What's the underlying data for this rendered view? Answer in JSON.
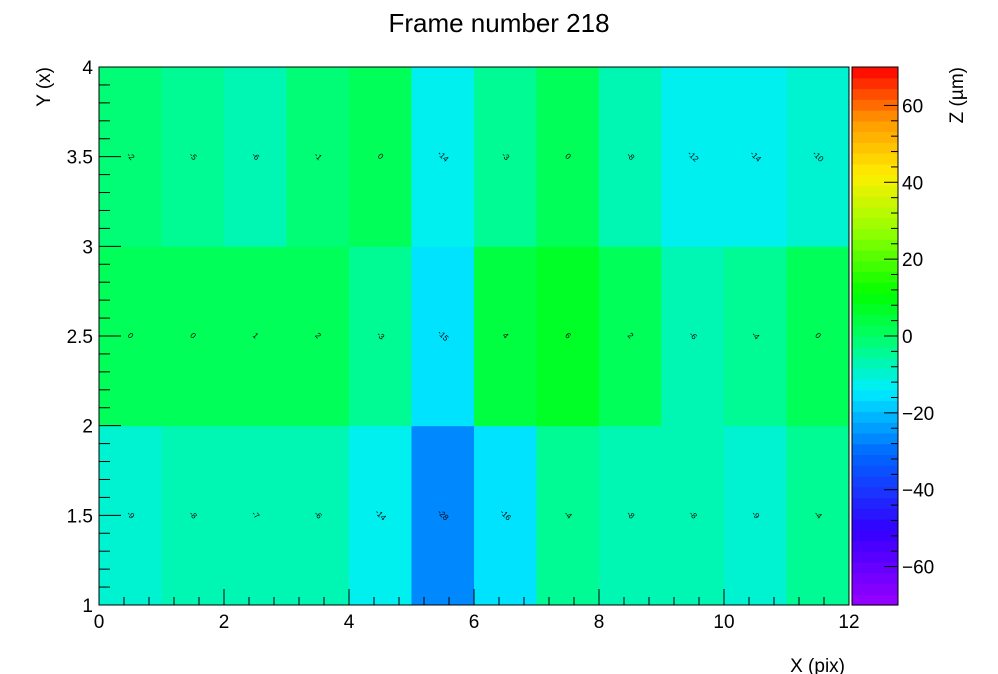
{
  "chart_data": {
    "type": "heatmap",
    "title": "Frame number 218",
    "xlabel": "X (pix)",
    "ylabel": "Y (x)",
    "zlabel": "Z (µm)",
    "xlim": [
      0,
      12
    ],
    "ylim": [
      1,
      4
    ],
    "zlim": [
      -70,
      70
    ],
    "x_ticks": [
      "0",
      "2",
      "4",
      "6",
      "8",
      "10",
      "12"
    ],
    "y_ticks": [
      "1",
      "1.5",
      "2",
      "2.5",
      "3",
      "3.5",
      "4"
    ],
    "z_ticks": [
      "−60",
      "−40",
      "−20",
      "0",
      "20",
      "40",
      "60"
    ],
    "x_bins": 12,
    "y_bins": 3,
    "rows": [
      {
        "y_center": 1.5,
        "values": [
          -9,
          -8,
          -7,
          -6,
          -14,
          -28,
          -16,
          -4,
          -8,
          -8,
          -9,
          -4
        ]
      },
      {
        "y_center": 2.5,
        "values": [
          0,
          0,
          1,
          2,
          -3,
          -15,
          4,
          6,
          2,
          -6,
          -4,
          0
        ]
      },
      {
        "y_center": 3.5,
        "values": [
          -2,
          -5,
          -6,
          -1,
          0,
          -14,
          -3,
          0,
          -8,
          -12,
          -14,
          -10
        ]
      }
    ],
    "palette": "rainbow"
  }
}
